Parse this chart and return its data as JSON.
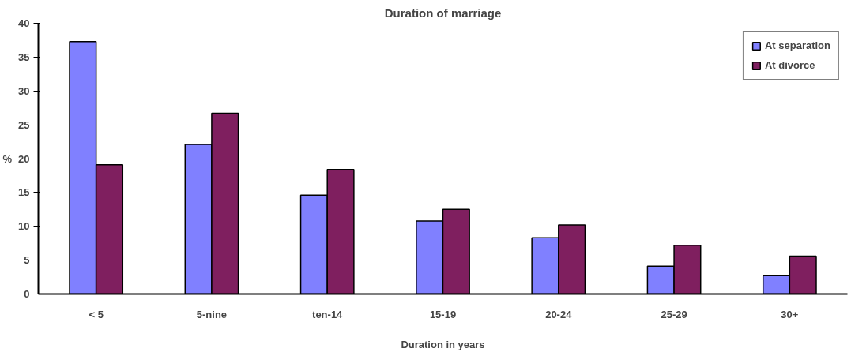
{
  "chart_data": {
    "type": "bar",
    "title": "Duration of marriage",
    "xlabel": "Duration in years",
    "ylabel": "%",
    "categories": [
      "< 5",
      "5-nine",
      "ten-14",
      "15-19",
      "20-24",
      "25-29",
      "30+"
    ],
    "series": [
      {
        "name": "At separation",
        "color": "#8080ff",
        "values": [
          37.3,
          22.1,
          14.6,
          10.8,
          8.3,
          4.1,
          2.7
        ]
      },
      {
        "name": "At divorce",
        "color": "#7f1f5f",
        "values": [
          19.1,
          26.7,
          18.4,
          12.5,
          10.2,
          7.2,
          5.6
        ]
      }
    ],
    "ylim": [
      0,
      40
    ],
    "yticks": [
      0,
      5,
      10,
      15,
      20,
      25,
      30,
      35,
      40
    ],
    "grid": false,
    "legend": "top right"
  }
}
